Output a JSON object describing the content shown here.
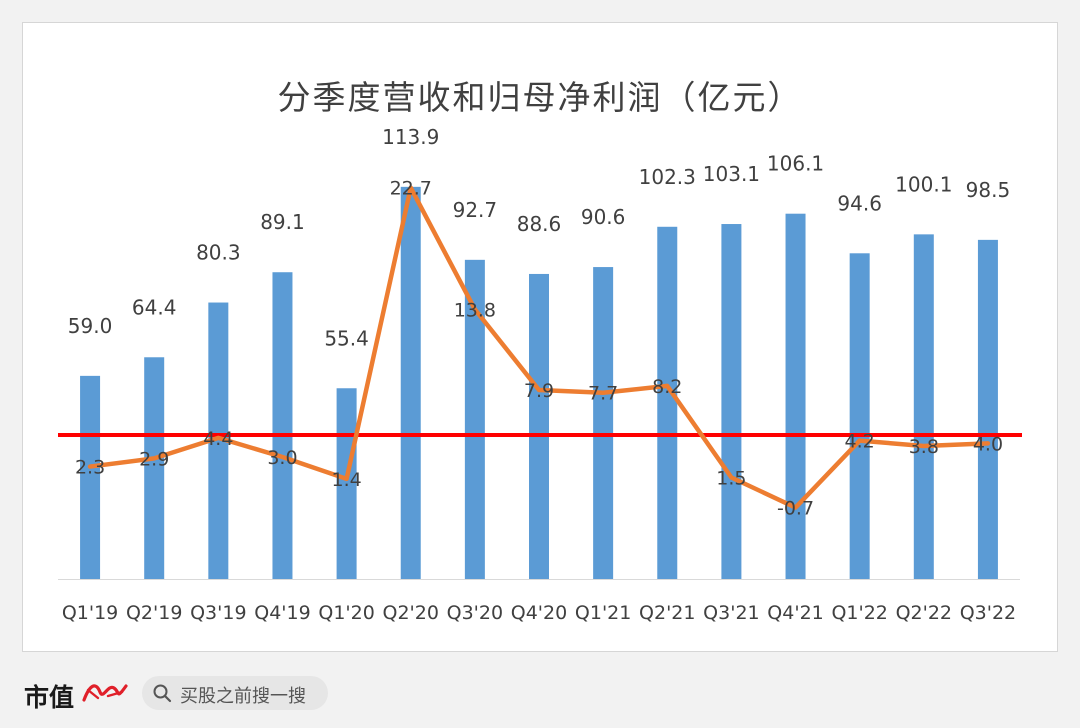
{
  "chart_data": {
    "type": "bar",
    "title": "分季度营收和归母净利润（亿元）",
    "categories": [
      "Q1'19",
      "Q2'19",
      "Q3'19",
      "Q4'19",
      "Q1'20",
      "Q2'20",
      "Q3'20",
      "Q4'20",
      "Q1'21",
      "Q2'21",
      "Q3'21",
      "Q4'21",
      "Q1'22",
      "Q2'22",
      "Q3'22"
    ],
    "series": [
      {
        "kind": "bar",
        "color": "#5b9bd5",
        "values": [
          59.0,
          64.4,
          80.3,
          89.1,
          55.4,
          113.9,
          92.7,
          88.6,
          90.6,
          102.3,
          103.1,
          106.1,
          94.6,
          100.1,
          98.5
        ],
        "labels": [
          "59.0",
          "64.4",
          "80.3",
          "89.1",
          "55.4",
          "113.9",
          "92.7",
          "88.6",
          "90.6",
          "102.3",
          "103.1",
          "106.1",
          "94.6",
          "100.1",
          "98.5"
        ]
      },
      {
        "kind": "line",
        "color": "#ed7d31",
        "values": [
          2.3,
          2.9,
          4.4,
          3.0,
          1.4,
          22.7,
          13.8,
          7.9,
          7.7,
          8.2,
          1.5,
          -0.7,
          4.2,
          3.8,
          4.0
        ],
        "labels": [
          "2.3",
          "2.9",
          "4.4",
          "3.0",
          "1.4",
          "22.7",
          "13.8",
          "7.9",
          "7.7",
          "8.2",
          "1.5",
          "-0.7",
          "4.2",
          "3.8",
          "4.0"
        ]
      }
    ],
    "reference_line_color": "#ff0000",
    "grid": false,
    "legend": "none"
  },
  "footer": {
    "brand": "市值",
    "search_placeholder": "买股之前搜一搜"
  }
}
